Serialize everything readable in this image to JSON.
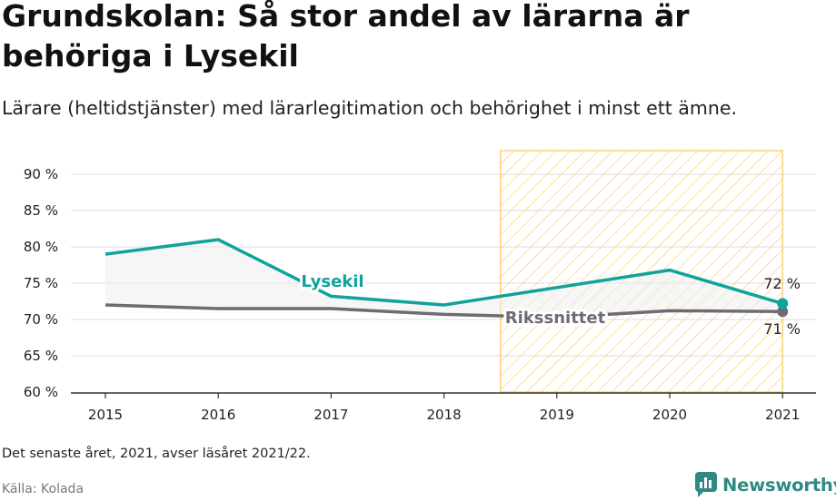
{
  "header": {
    "title": "Grundskolan: Så stor andel av lärarna är behöriga i Lysekil",
    "subtitle": "Lärare (heltidstjänster) med lärarlegitimation och behörighet i minst ett ämne."
  },
  "footer": {
    "note": "Det senaste året, 2021, avser läsåret 2021/22.",
    "source": "Källa: Kolada",
    "brand": "Newsworthy"
  },
  "colors": {
    "lysekil": "#0fa39a",
    "riket": "#6f6a73",
    "highlight_stroke": "#f6c95a",
    "fill_between": "#eeeeee",
    "grid": "#dddddd",
    "axis": "#333333"
  },
  "chart_data": {
    "type": "line",
    "x": [
      "2015",
      "2016",
      "2017",
      "2018",
      "2019",
      "2020",
      "2021"
    ],
    "ylim": [
      60,
      92
    ],
    "ytick_values": [
      60,
      65,
      70,
      75,
      80,
      85,
      90
    ],
    "ytick_labels": [
      "60 %",
      "65 %",
      "70 %",
      "75 %",
      "80 %",
      "85 %",
      "90 %"
    ],
    "grid": true,
    "highlight_range": {
      "from": "2018.5",
      "to": "2021",
      "pattern": "diagonal-hatch"
    },
    "series": [
      {
        "name": "Lysekil",
        "x": [
          2015,
          2016,
          2017,
          2018,
          2020,
          2021
        ],
        "values": [
          79,
          81,
          73.2,
          72,
          76.8,
          72.2
        ],
        "end_label": "72 %"
      },
      {
        "name": "Rikssnittet",
        "x": [
          2015,
          2016,
          2017,
          2018,
          2019,
          2020,
          2021
        ],
        "values": [
          72,
          71.5,
          71.5,
          70.7,
          70.3,
          71.2,
          71.1
        ],
        "end_label": "71 %"
      }
    ]
  }
}
